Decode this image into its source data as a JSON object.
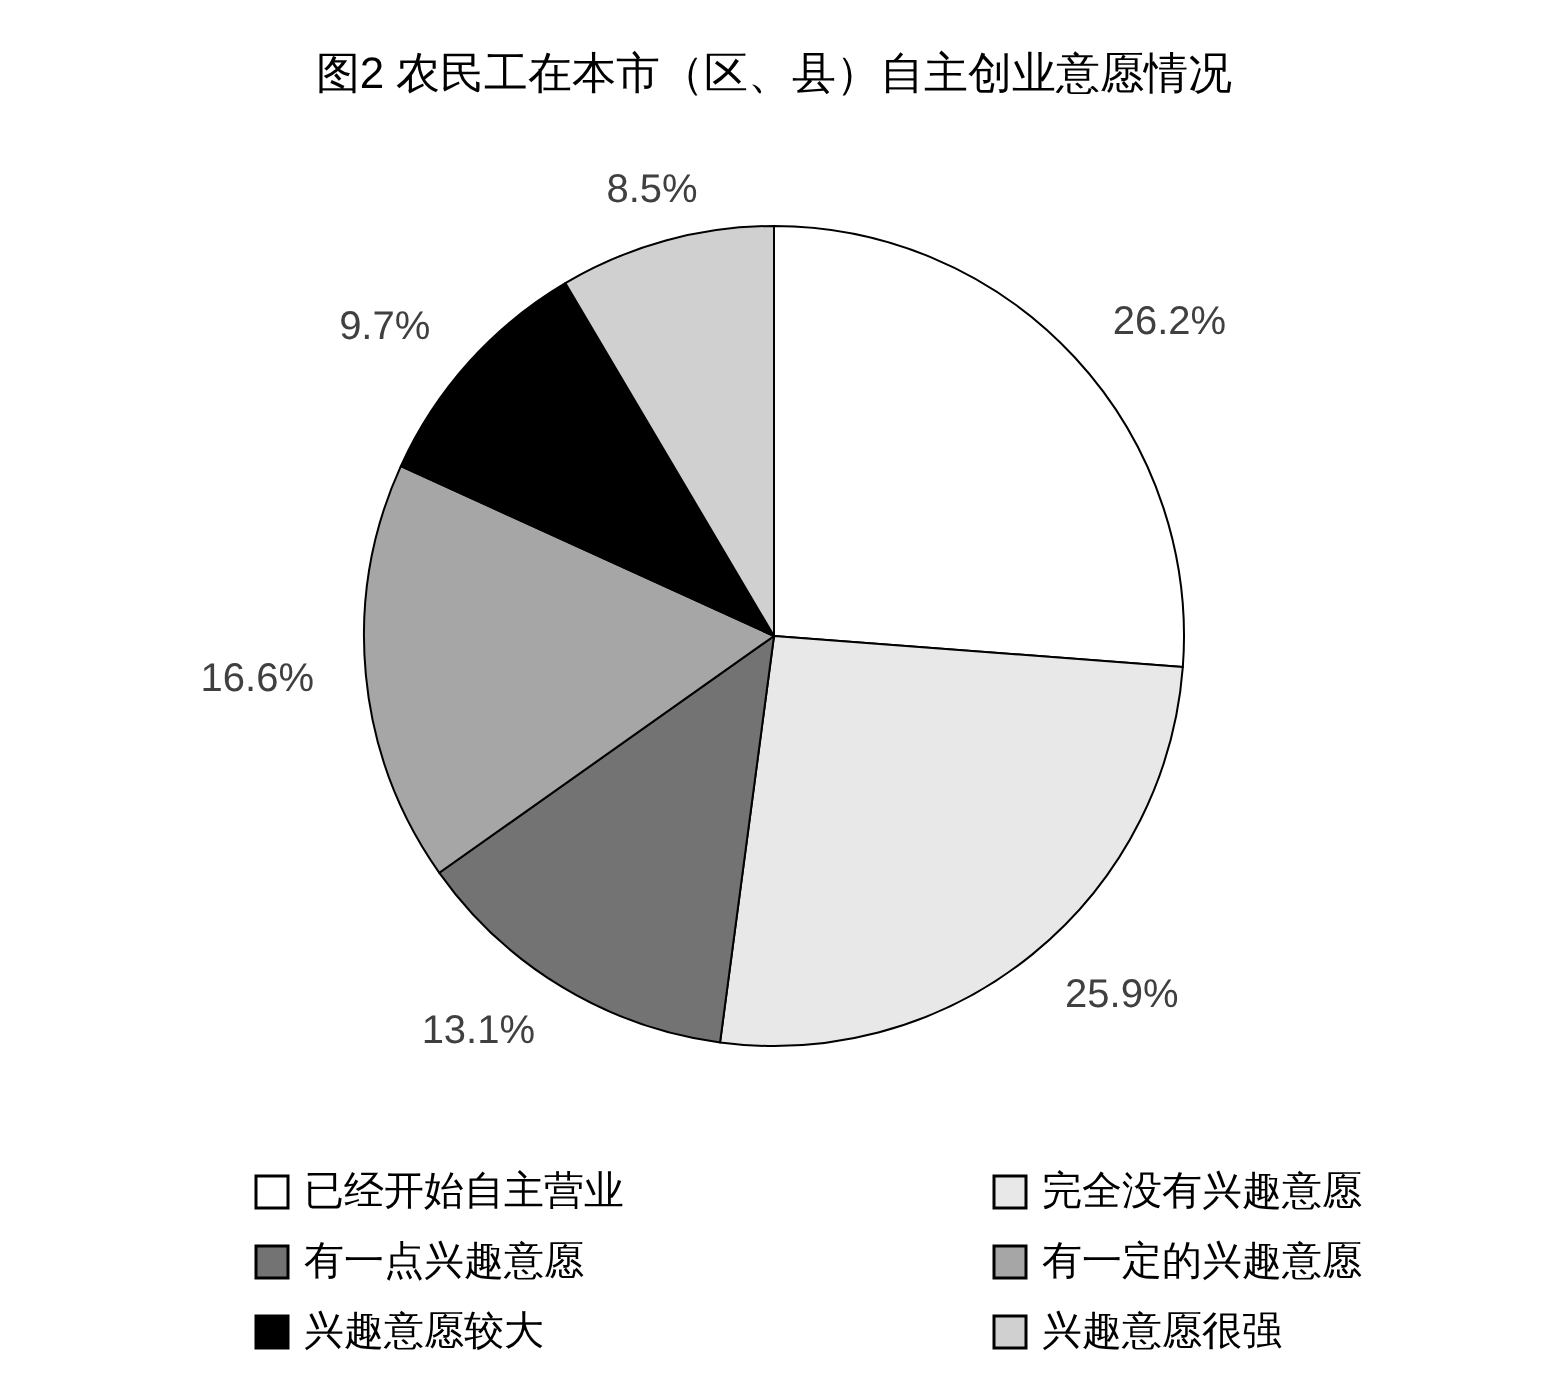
{
  "chart_data": {
    "type": "pie",
    "title": "图2 农民工在本市（区、县）自主创业意愿情况",
    "categories": [
      "已经开始自主营业",
      "完全没有兴趣意愿",
      "有一点兴趣意愿",
      "有一定的兴趣意愿",
      "兴趣意愿较大",
      "兴趣意愿很强"
    ],
    "values": [
      26.2,
      25.9,
      13.1,
      16.6,
      9.7,
      8.5
    ],
    "value_labels": [
      "26.2%",
      "25.9%",
      "13.1%",
      "16.6%",
      "9.7%",
      "8.5%"
    ],
    "colors": [
      "#ffffff",
      "#e8e8e8",
      "#737373",
      "#a6a6a6",
      "#000000",
      "#d0d0d0"
    ],
    "legend": "bottom"
  }
}
